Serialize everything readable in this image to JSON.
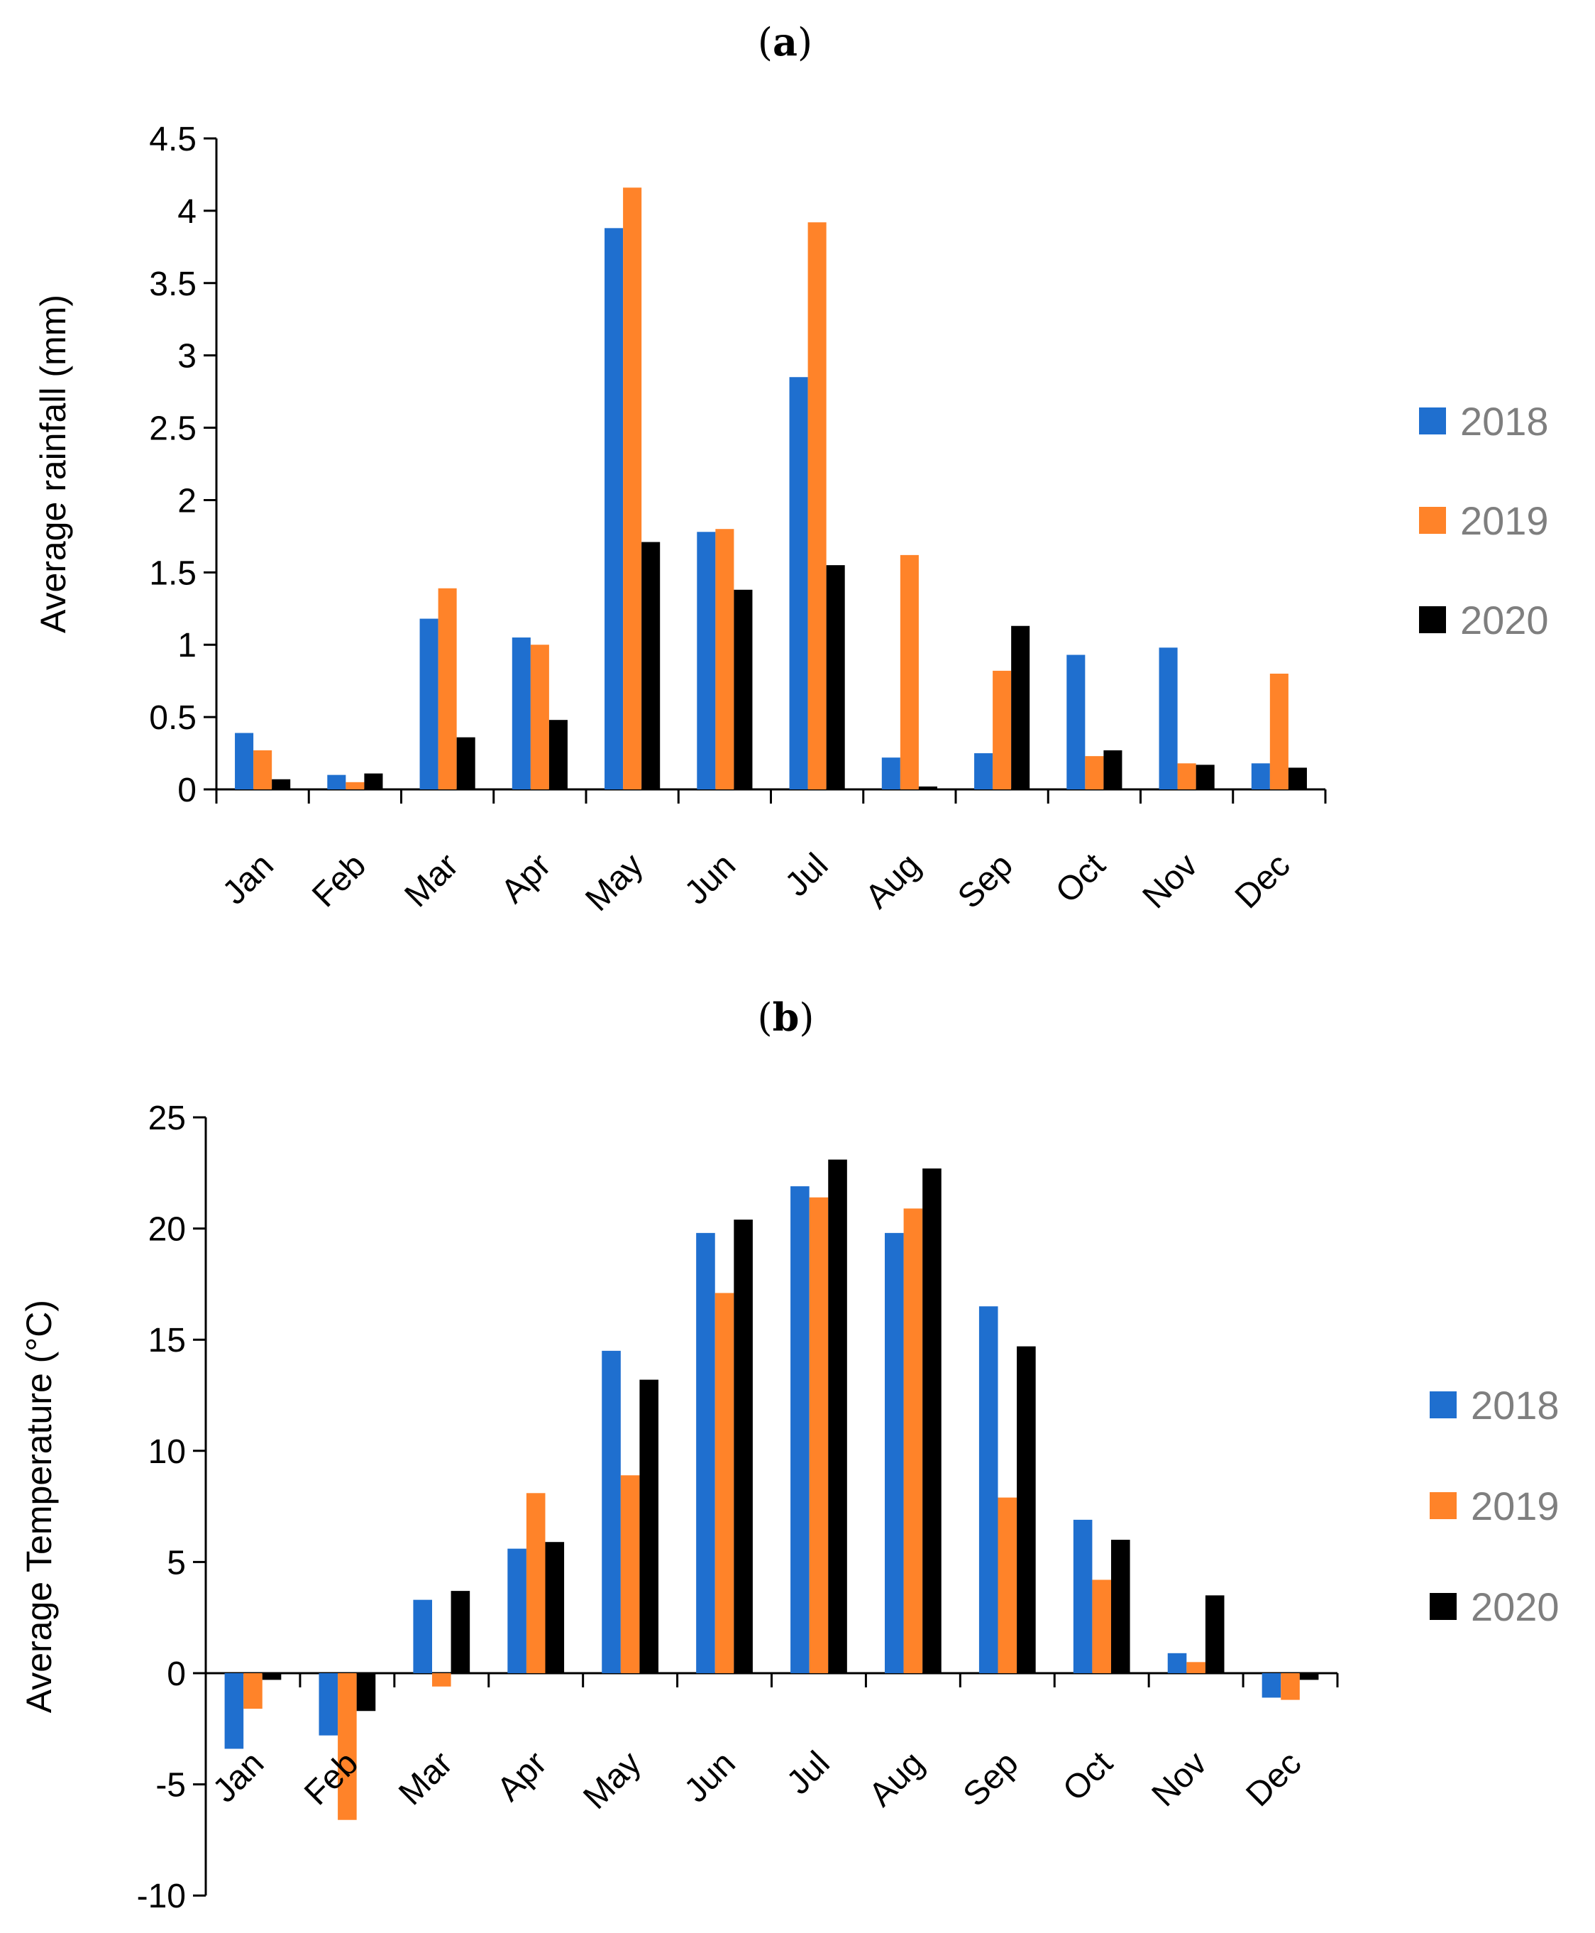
{
  "colors": {
    "2018": "#1f6fcf",
    "2019": "#ff8329",
    "2020": "#000000"
  },
  "chart_data": [
    {
      "type": "bar",
      "panel_label": "a",
      "categories": [
        "Jan",
        "Feb",
        "Mar",
        "Apr",
        "May",
        "Jun",
        "Jul",
        "Aug",
        "Sep",
        "Oct",
        "Nov",
        "Dec"
      ],
      "series": [
        {
          "name": "2018",
          "color": "#1f6fcf",
          "values": [
            0.39,
            0.1,
            1.18,
            1.05,
            3.88,
            1.78,
            2.85,
            0.22,
            0.25,
            0.93,
            0.98,
            0.18
          ]
        },
        {
          "name": "2019",
          "color": "#ff8329",
          "values": [
            0.27,
            0.05,
            1.39,
            1.0,
            4.16,
            1.8,
            3.92,
            1.62,
            0.82,
            0.23,
            0.18,
            0.8
          ]
        },
        {
          "name": "2020",
          "color": "#000000",
          "values": [
            0.07,
            0.11,
            0.36,
            0.48,
            1.71,
            1.38,
            1.55,
            0.02,
            1.13,
            0.27,
            0.17,
            0.15
          ]
        }
      ],
      "ylabel": "Average rainfall (mm)",
      "ylim": [
        0,
        4.5
      ],
      "yticks": [
        0,
        0.5,
        1,
        1.5,
        2,
        2.5,
        3,
        3.5,
        4,
        4.5
      ],
      "ytick_labels": [
        "0",
        "0.5",
        "1",
        "1.5",
        "2",
        "2.5",
        "3",
        "3.5",
        "4",
        "4.5"
      ],
      "grid": false,
      "legend": "right"
    },
    {
      "type": "bar",
      "panel_label": "b",
      "categories": [
        "Jan",
        "Feb",
        "Mar",
        "Apr",
        "May",
        "Jun",
        "Jul",
        "Aug",
        "Sep",
        "Oct",
        "Nov",
        "Dec"
      ],
      "series": [
        {
          "name": "2018",
          "color": "#1f6fcf",
          "values": [
            -3.4,
            -2.8,
            3.3,
            5.6,
            14.5,
            19.8,
            21.9,
            19.8,
            16.5,
            6.9,
            0.9,
            -1.1
          ]
        },
        {
          "name": "2019",
          "color": "#ff8329",
          "values": [
            -1.6,
            -6.6,
            -0.6,
            8.1,
            8.9,
            17.1,
            21.4,
            20.9,
            7.9,
            4.2,
            0.5,
            -1.2
          ]
        },
        {
          "name": "2020",
          "color": "#000000",
          "values": [
            -0.3,
            -1.7,
            3.7,
            5.9,
            13.2,
            20.4,
            23.1,
            22.7,
            14.7,
            6.0,
            3.5,
            -0.3
          ]
        }
      ],
      "ylabel": "Average Temperature (°C)",
      "ylim": [
        -10,
        25
      ],
      "yticks": [
        -10,
        -5,
        0,
        5,
        10,
        15,
        20,
        25
      ],
      "ytick_labels": [
        "-10",
        "-5",
        "0",
        "5",
        "10",
        "15",
        "20",
        "25"
      ],
      "grid": false,
      "legend": "right"
    }
  ]
}
